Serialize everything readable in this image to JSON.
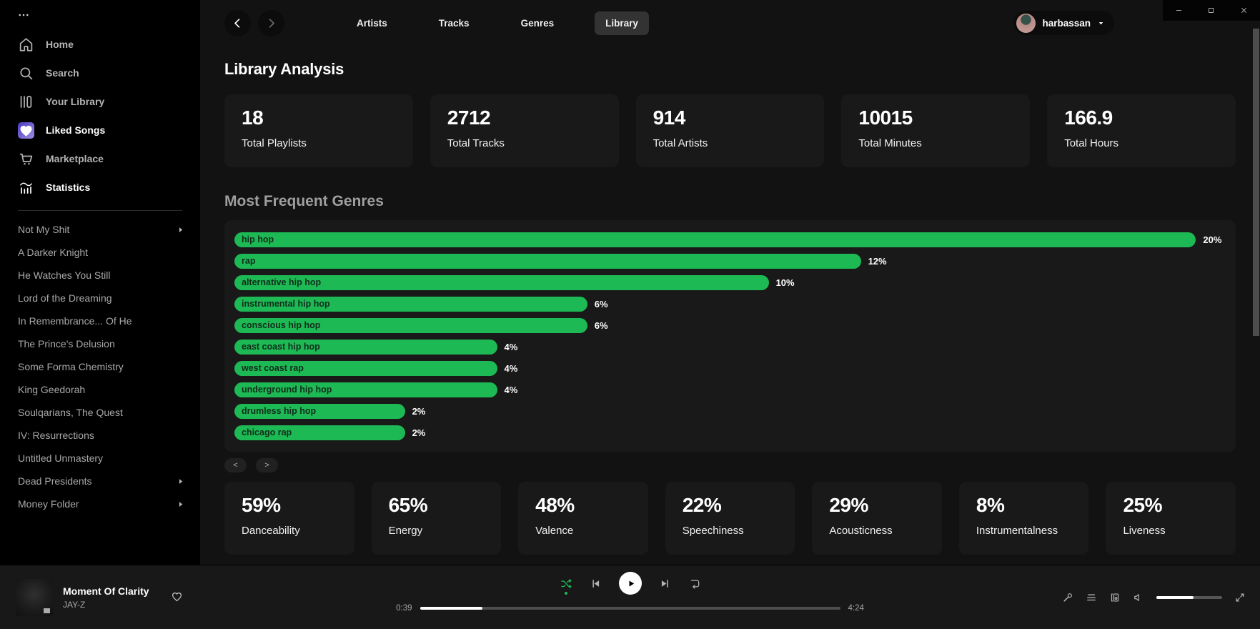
{
  "window": {
    "buttons": [
      "minimize-icon",
      "maximize-icon",
      "close-icon"
    ]
  },
  "sidebar": {
    "menu_icon": "ellipsis-icon",
    "items": [
      {
        "label": "Home",
        "icon": "home-icon",
        "bright": false
      },
      {
        "label": "Search",
        "icon": "search-icon",
        "bright": false
      },
      {
        "label": "Your Library",
        "icon": "library-icon",
        "bright": false
      },
      {
        "label": "Liked Songs",
        "icon": "liked-songs-icon",
        "bright": true
      },
      {
        "label": "Marketplace",
        "icon": "cart-icon",
        "bright": false
      },
      {
        "label": "Statistics",
        "icon": "stats-icon",
        "bright": true
      }
    ],
    "playlists": [
      {
        "label": "Not My Shit",
        "has_submenu": true
      },
      {
        "label": "A Darker Knight",
        "has_submenu": false
      },
      {
        "label": "He Watches You Still",
        "has_submenu": false
      },
      {
        "label": "Lord of the Dreaming",
        "has_submenu": false
      },
      {
        "label": "In Remembrance... Of He",
        "has_submenu": false
      },
      {
        "label": "The Prince's Delusion",
        "has_submenu": false
      },
      {
        "label": "Some Forma Chemistry",
        "has_submenu": false
      },
      {
        "label": "King Geedorah",
        "has_submenu": false
      },
      {
        "label": "Soulqarians, The Quest",
        "has_submenu": false
      },
      {
        "label": "IV: Resurrections",
        "has_submenu": false
      },
      {
        "label": "Untitled Unmastery",
        "has_submenu": false
      },
      {
        "label": "Dead Presidents",
        "has_submenu": true
      },
      {
        "label": "Money Folder",
        "has_submenu": true
      }
    ]
  },
  "topbar": {
    "tabs": [
      {
        "label": "Artists",
        "active": false
      },
      {
        "label": "Tracks",
        "active": false
      },
      {
        "label": "Genres",
        "active": false
      },
      {
        "label": "Library",
        "active": true
      }
    ],
    "user": {
      "name": "harbassan"
    }
  },
  "main": {
    "title": "Library Analysis",
    "stat_cards": [
      {
        "value": "18",
        "label": "Total Playlists"
      },
      {
        "value": "2712",
        "label": "Total Tracks"
      },
      {
        "value": "914",
        "label": "Total Artists"
      },
      {
        "value": "10015",
        "label": "Total Minutes"
      },
      {
        "value": "166.9",
        "label": "Total Hours"
      }
    ],
    "genres_title": "Most Frequent Genres",
    "pagination": {
      "prev_label": "<",
      "next_label": ">"
    },
    "feature_cards": [
      {
        "value": "59%",
        "label": "Danceability"
      },
      {
        "value": "65%",
        "label": "Energy"
      },
      {
        "value": "48%",
        "label": "Valence"
      },
      {
        "value": "22%",
        "label": "Speechiness"
      },
      {
        "value": "29%",
        "label": "Acousticness"
      },
      {
        "value": "8%",
        "label": "Instrumentalness"
      },
      {
        "value": "25%",
        "label": "Liveness"
      }
    ]
  },
  "chart_data": {
    "type": "bar",
    "orientation": "horizontal",
    "title": "Most Frequent Genres",
    "categories": [
      "hip hop",
      "rap",
      "alternative hip hop",
      "instrumental hip hop",
      "conscious hip hop",
      "east coast hip hop",
      "west coast rap",
      "underground hip hop",
      "drumless hip hop",
      "chicago rap"
    ],
    "values": [
      20,
      12,
      10,
      6,
      6,
      4,
      4,
      4,
      2,
      2
    ],
    "value_suffix": "%",
    "bar_width_pct": [
      97,
      63.2,
      53.9,
      35.6,
      35.6,
      26.5,
      26.5,
      26.5,
      17.2,
      17.2
    ],
    "bar_color": "#1db954",
    "grid": false,
    "legend": false
  },
  "player": {
    "track": "Moment Of Clarity",
    "artist": "JAY-Z",
    "elapsed": "0:39",
    "duration": "4:24",
    "progress_pct": 14.8,
    "volume_pct": 56,
    "controls": [
      {
        "icon": "shuffle-icon",
        "name": "shuffle-button",
        "active": true
      },
      {
        "icon": "previous-icon",
        "name": "previous-button",
        "active": false
      },
      {
        "icon": "play-icon",
        "name": "play-button",
        "active": false
      },
      {
        "icon": "next-icon",
        "name": "next-button",
        "active": false
      },
      {
        "icon": "repeat-icon",
        "name": "repeat-button",
        "active": false
      }
    ],
    "right_controls": [
      {
        "icon": "lyrics-mic-icon",
        "name": "lyrics-button"
      },
      {
        "icon": "queue-icon",
        "name": "queue-button"
      },
      {
        "icon": "connect-device-icon",
        "name": "connect-device-button"
      },
      {
        "icon": "volume-icon",
        "name": "mute-button"
      }
    ],
    "fullscreen": {
      "icon": "fullscreen-icon",
      "name": "fullscreen-button"
    }
  },
  "colors": {
    "accent_green": "#1db954",
    "page_bg": "#121212",
    "sidebar_bg": "#000000",
    "card_bg": "#191919"
  }
}
